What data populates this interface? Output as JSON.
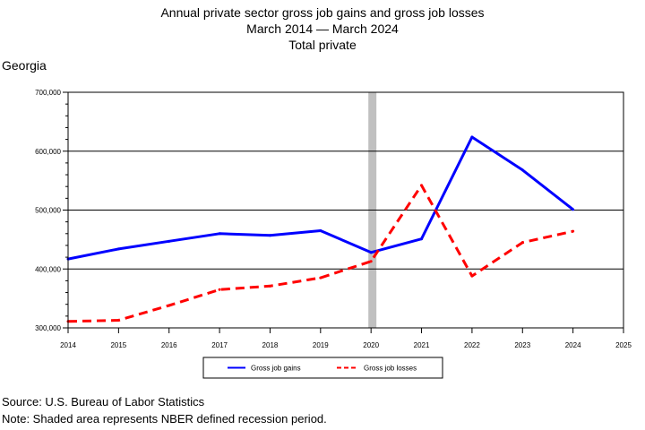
{
  "chart_data": {
    "type": "line",
    "title": "Annual private sector gross job gains and gross job losses",
    "subtitle_lines": [
      "March 2014 — March 2024",
      "Total private"
    ],
    "region_label": "Georgia",
    "x": [
      2014,
      2015,
      2016,
      2017,
      2018,
      2019,
      2020,
      2021,
      2022,
      2023,
      2024
    ],
    "x_ticks": [
      2014,
      2015,
      2016,
      2017,
      2018,
      2019,
      2020,
      2021,
      2022,
      2023,
      2024,
      2025
    ],
    "xlim": [
      2014,
      2025
    ],
    "ylim": [
      300000,
      700000
    ],
    "y_ticks": [
      300000,
      400000,
      500000,
      600000,
      700000
    ],
    "y_tick_labels": [
      "300,000",
      "400,000",
      "500,000",
      "600,000",
      "700,000"
    ],
    "grid": "horizontal",
    "recession_band": {
      "from": 2020,
      "to": 2020.15,
      "color": "#c0c0c0"
    },
    "series": [
      {
        "name": "Gross job gains",
        "color": "#0000ff",
        "dash": "solid",
        "values": [
          417000,
          434000,
          447000,
          460000,
          457000,
          465000,
          428000,
          451000,
          624000,
          568000,
          501000
        ]
      },
      {
        "name": "Gross job losses",
        "color": "#ff0000",
        "dash": "dashed",
        "values": [
          311000,
          313000,
          338000,
          365000,
          371000,
          385000,
          413000,
          542000,
          388000,
          445000,
          464000
        ]
      }
    ],
    "legend_position": "bottom-center"
  },
  "footer": {
    "source": "Source: U.S. Bureau of Labor Statistics",
    "note": "Note: Shaded area represents NBER defined recession period."
  }
}
